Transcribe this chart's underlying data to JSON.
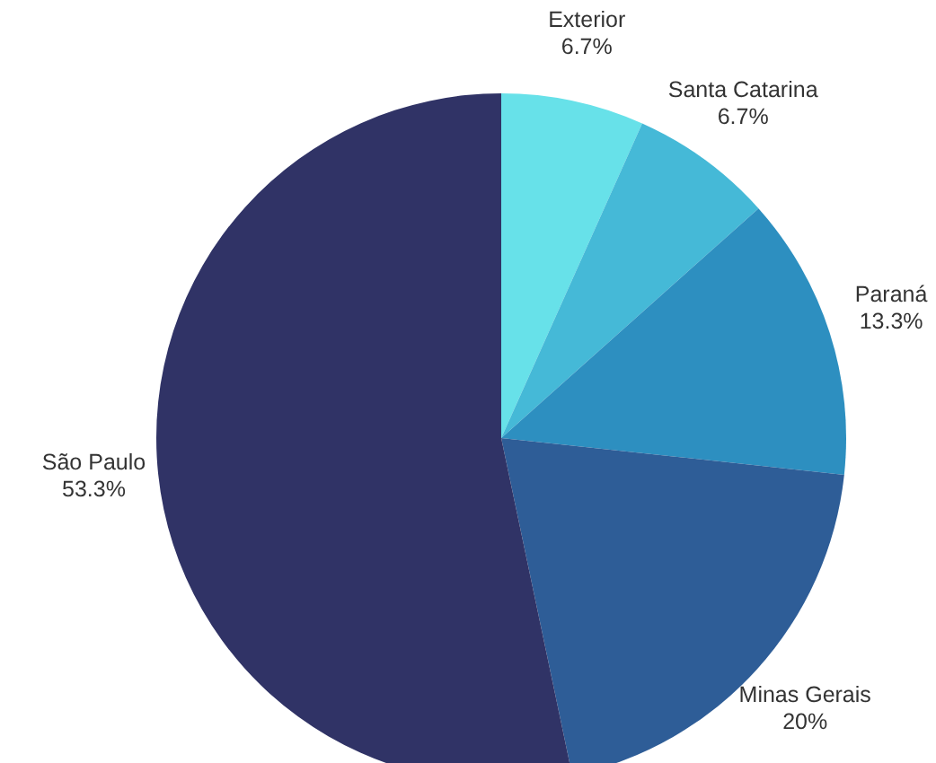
{
  "chart_data": {
    "type": "pie",
    "categories": [
      "Exterior",
      "Santa Catarina",
      "Paraná",
      "Minas Gerais",
      "São Paulo"
    ],
    "values": [
      6.7,
      6.7,
      13.3,
      20,
      53.3
    ],
    "value_labels": [
      "6.7%",
      "6.7%",
      "13.3%",
      "20%",
      "53.3%"
    ],
    "colors": [
      "#67e1e9",
      "#45b9d7",
      "#2d8fc0",
      "#2e5d97",
      "#303366"
    ],
    "legend": false
  }
}
